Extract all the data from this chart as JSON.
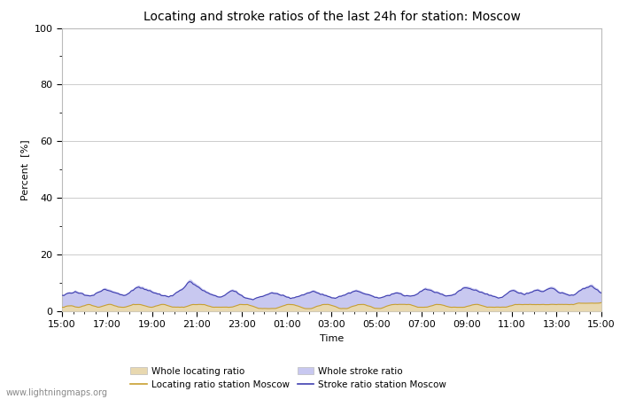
{
  "title": "Locating and stroke ratios of the last 24h for station: Moscow",
  "xlabel": "Time",
  "ylabel": "Percent  [%]",
  "xlim": [
    0,
    288
  ],
  "ylim": [
    0,
    100
  ],
  "yticks": [
    0,
    20,
    40,
    60,
    80,
    100
  ],
  "ytick_minor": [
    10,
    30,
    50,
    70,
    90
  ],
  "xtick_labels": [
    "15:00",
    "17:00",
    "19:00",
    "21:00",
    "23:00",
    "01:00",
    "03:00",
    "05:00",
    "07:00",
    "09:00",
    "11:00",
    "13:00",
    "15:00"
  ],
  "background_color": "#ffffff",
  "plot_bg_color": "#ffffff",
  "grid_color": "#cccccc",
  "whole_locating_fill_color": "#e8d8b0",
  "whole_stroke_fill_color": "#c8c8f0",
  "locating_line_color": "#c8a030",
  "stroke_line_color": "#4040b0",
  "watermark": "www.lightningmaps.org",
  "title_fontsize": 10,
  "tick_fontsize": 8,
  "label_fontsize": 8,
  "figsize": [
    7.0,
    4.5
  ],
  "dpi": 100
}
